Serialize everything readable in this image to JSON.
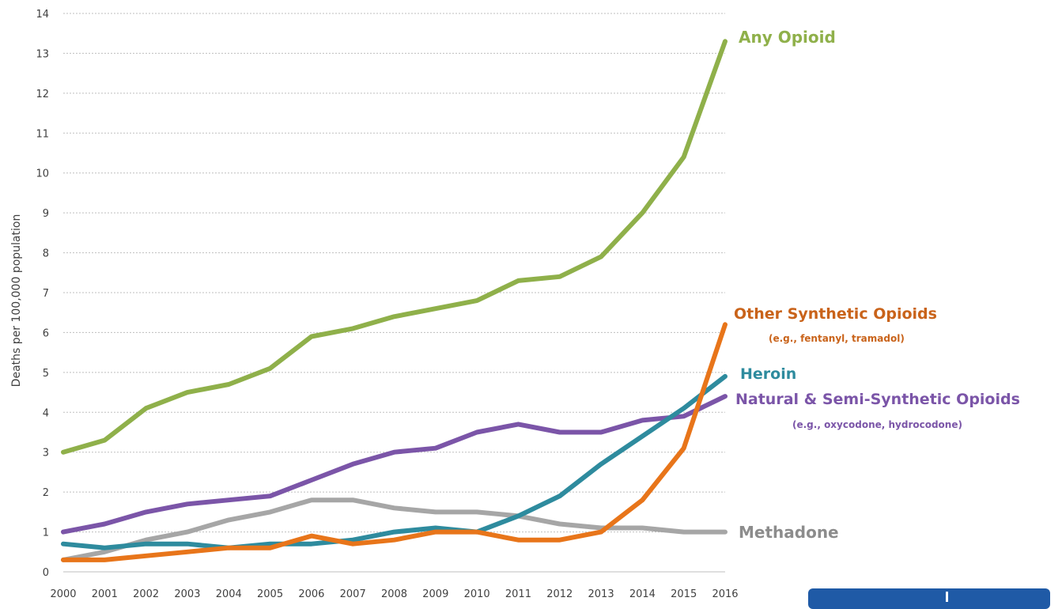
{
  "chart_data": {
    "type": "line",
    "xlabel": "",
    "ylabel": "Deaths per 100,000 population",
    "x": [
      "2000",
      "2001",
      "2002",
      "2003",
      "2004",
      "2005",
      "2006",
      "2007",
      "2008",
      "2009",
      "2010",
      "2011",
      "2012",
      "2013",
      "2014",
      "2015",
      "2016"
    ],
    "ylim": [
      0,
      14
    ],
    "yticks": [
      "0",
      "1",
      "2",
      "3",
      "4",
      "5",
      "6",
      "7",
      "8",
      "9",
      "10",
      "11",
      "12",
      "13",
      "14"
    ],
    "grid": "horizontal dotted",
    "series": [
      {
        "name": "Any Opioid",
        "color": "#8fb04a",
        "values": [
          3.0,
          3.3,
          4.1,
          4.5,
          4.7,
          5.1,
          5.9,
          6.1,
          6.4,
          6.6,
          6.8,
          7.3,
          7.4,
          7.9,
          9.0,
          10.4,
          13.3
        ]
      },
      {
        "name": "Other Synthetic Opioids",
        "subtitle": "(e.g., fentanyl, tramadol)",
        "color": "#e8751a",
        "values": [
          0.3,
          0.3,
          0.4,
          0.5,
          0.6,
          0.6,
          0.9,
          0.7,
          0.8,
          1.0,
          1.0,
          0.8,
          0.8,
          1.0,
          1.8,
          3.1,
          6.2
        ]
      },
      {
        "name": "Heroin",
        "color": "#2e8b9e",
        "values": [
          0.7,
          0.6,
          0.7,
          0.7,
          0.6,
          0.7,
          0.7,
          0.8,
          1.0,
          1.1,
          1.0,
          1.4,
          1.9,
          2.7,
          3.4,
          4.1,
          4.9
        ]
      },
      {
        "name": "Natural & Semi-Synthetic Opioids",
        "subtitle": "(e.g., oxycodone, hydrocodone)",
        "color": "#7b55a8",
        "values": [
          1.0,
          1.2,
          1.5,
          1.7,
          1.8,
          1.9,
          2.3,
          2.7,
          3.0,
          3.1,
          3.5,
          3.7,
          3.5,
          3.5,
          3.8,
          3.9,
          4.4
        ]
      },
      {
        "name": "Methadone",
        "color": "#a6a6a6",
        "values": [
          0.3,
          0.5,
          0.8,
          1.0,
          1.3,
          1.5,
          1.8,
          1.8,
          1.6,
          1.5,
          1.5,
          1.4,
          1.2,
          1.1,
          1.1,
          1.0,
          1.0
        ]
      }
    ]
  }
}
